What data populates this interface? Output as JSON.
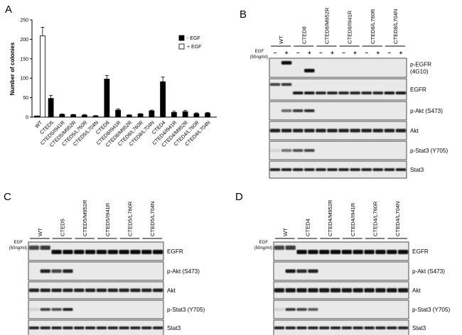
{
  "panels": {
    "A": {
      "letter": "A"
    },
    "B": {
      "letter": "B"
    },
    "C": {
      "letter": "C"
    },
    "D": {
      "letter": "D"
    }
  },
  "chart_data": {
    "type": "bar",
    "ylabel": "Number of colonies",
    "xlabel": "",
    "ylim": [
      0,
      250
    ],
    "yticks": [
      0,
      50,
      100,
      150,
      200,
      250
    ],
    "categories": [
      "WT",
      "CTED5",
      "CTED5/I941R",
      "CTED5/M952R",
      "CTED5/L760R",
      "CTED5/L704N",
      "CTED8",
      "CTED8/I941R",
      "CTED8/M952R",
      "CTED8/L760R",
      "CTED8/L704N",
      "CTED4",
      "CTED4/I941R",
      "CTED4/M952R",
      "CTED4/L760R",
      "CTED4/L704N"
    ],
    "series": [
      {
        "name": "- EGF",
        "color": "#000000",
        "values": [
          3,
          48,
          7,
          6,
          5,
          3,
          98,
          18,
          5,
          8,
          16,
          91,
          12,
          14,
          9,
          10
        ],
        "errors": [
          0,
          8,
          1,
          1,
          2,
          1,
          9,
          3,
          1,
          1,
          2,
          12,
          3,
          3,
          2,
          2
        ]
      },
      {
        "name": "+ EGF",
        "color": "#ffffff",
        "values": [
          209,
          null,
          null,
          null,
          null,
          null,
          null,
          null,
          null,
          null,
          null,
          null,
          null,
          null,
          null,
          null
        ],
        "errors": [
          22,
          0,
          0,
          0,
          0,
          0,
          0,
          0,
          0,
          0,
          0,
          0,
          0,
          0,
          0,
          0
        ]
      }
    ],
    "legend": "top-right",
    "grid": false
  },
  "blots": {
    "egf_label": "EGF",
    "egf_conc": "(50ng/ml)",
    "minus": "–",
    "plus": "+",
    "B": {
      "headers": [
        "WT",
        "CTED8",
        "CTED8/M952R",
        "CTED8/I941R",
        "CTED8/L760R",
        "CTED8/L704N"
      ],
      "rows": [
        "p-EGFR\n(4G10)",
        "EGFR",
        "p-Akt (S473)",
        "Akt",
        "p-Stat3 (Y705)",
        "Stat3"
      ]
    },
    "C": {
      "headers": [
        "WT",
        "CTED5",
        "CTED5/M952R",
        "CTED5/I941R",
        "CTED5/L760R",
        "CTED5/L704N"
      ],
      "rows": [
        "EGFR",
        "p-Akt (S473)",
        "Akt",
        "p-Stat3 (Y705)",
        "Stat3"
      ]
    },
    "D": {
      "headers": [
        "WT",
        "CTED4",
        "CTED4/M952R",
        "CTED4/I941R",
        "CTED4/L760R",
        "CTED4/L704N"
      ],
      "rows": [
        "EGFR",
        "p-Akt (S473)",
        "Akt",
        "p-Stat3 (Y705)",
        "Stat3"
      ]
    }
  }
}
